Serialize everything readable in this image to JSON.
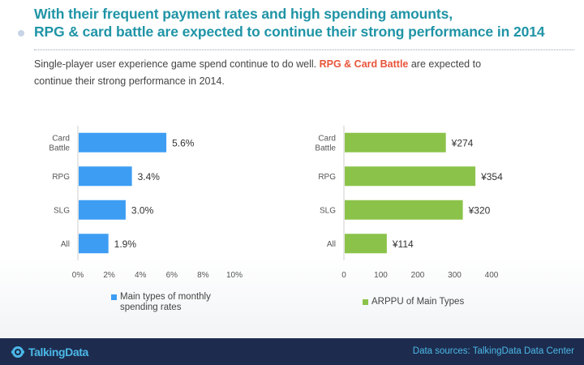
{
  "header": {
    "title_line1": "With their frequent payment rates and high spending amounts,",
    "title_line2": "RPG & card battle are expected to continue their strong performance in 2014",
    "subtitle_pre": "Single-player user experience game spend continue to do well.",
    "subtitle_highlight": "RPG & Card Battle",
    "subtitle_post": "are expected to continue their strong performance in 2014."
  },
  "chart_data": [
    {
      "type": "bar",
      "orientation": "horizontal",
      "categories": [
        "Card\nBattle",
        "RPG",
        "SLG",
        "All"
      ],
      "series": [
        {
          "name": "Main types of monthly spending rates",
          "values": [
            5.6,
            3.4,
            3.0,
            1.9
          ]
        }
      ],
      "value_labels": [
        "5.6%",
        "3.4%",
        "3.0%",
        "1.9%"
      ],
      "xticks": [
        "0%",
        "2%",
        "4%",
        "6%",
        "8%",
        "10%"
      ],
      "xlim": [
        0,
        10
      ],
      "color": "#3d9df3",
      "legend": "bottom"
    },
    {
      "type": "bar",
      "orientation": "horizontal",
      "categories": [
        "Card\nBattle",
        "RPG",
        "SLG",
        "All"
      ],
      "series": [
        {
          "name": "ARPPU of Main Types",
          "values": [
            274,
            354,
            320,
            114
          ]
        }
      ],
      "value_labels": [
        "¥274",
        "¥354",
        "¥320",
        "¥114"
      ],
      "xticks": [
        "0",
        "100",
        "200",
        "300",
        "400"
      ],
      "xlim": [
        0,
        400
      ],
      "color": "#8bc34a",
      "legend": "bottom"
    }
  ],
  "footer": {
    "logo_text": "TalkingData",
    "source": "Data sources: TalkingData Data Center"
  }
}
